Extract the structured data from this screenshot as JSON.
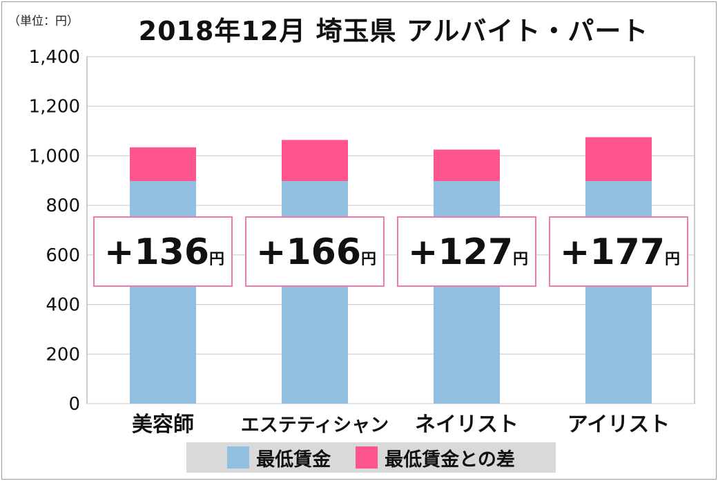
{
  "header": {
    "unit_note": "（単位：円）",
    "title": "2018年12月 埼玉県 アルバイト・パート"
  },
  "colors": {
    "min_wage": "#92bfdf",
    "diff": "#ff558f",
    "box_border": "#f07ab0",
    "grid": "#c6c6c6"
  },
  "chart_data": {
    "type": "bar",
    "stacked": true,
    "title": "2018年12月 埼玉県 アルバイト・パート",
    "categories": [
      "美容師",
      "エステティシャン",
      "ネイリスト",
      "アイリスト"
    ],
    "series": [
      {
        "name": "最低賃金",
        "values": [
          898,
          898,
          898,
          898
        ]
      },
      {
        "name": "最低賃金との差",
        "values": [
          136,
          166,
          127,
          177
        ]
      }
    ],
    "data_labels": [
      "+136",
      "+166",
      "+127",
      "+177"
    ],
    "data_label_unit": "円",
    "ylim": [
      0,
      1400
    ],
    "yticks": [
      0,
      200,
      400,
      600,
      800,
      1000,
      1200,
      1400
    ],
    "ytick_labels": [
      "0",
      "200",
      "400",
      "600",
      "800",
      "1,000",
      "1,200",
      "1,400"
    ],
    "grid": true,
    "legend": "bottom"
  }
}
